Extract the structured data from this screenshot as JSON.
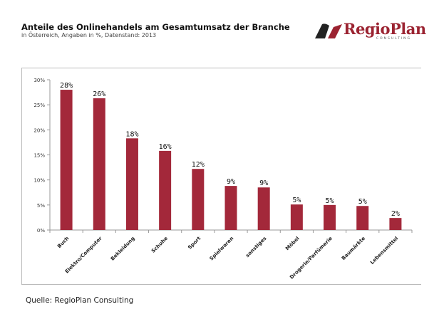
{
  "chart_data": {
    "type": "bar",
    "title": "Anteile des Onlinehandels am Gesamtumsatz der Branche",
    "subtitle": "in Österreich, Angaben in %, Datenstand: 2013",
    "categories": [
      "Buch",
      "Elektro/Computer",
      "Bekleidung",
      "Schuhe",
      "Sport",
      "Spielwaren",
      "sonstiges",
      "Möbel",
      "Drogerie/Parfümerie",
      "Baumärkte",
      "Lebensmittel"
    ],
    "values": [
      28,
      26.3,
      18.3,
      15.8,
      12.2,
      8.8,
      8.5,
      5.1,
      5.0,
      4.8,
      2.4
    ],
    "data_labels": [
      "28%",
      "26%",
      "18%",
      "16%",
      "12%",
      "9%",
      "9%",
      "5%",
      "5%",
      "5%",
      "2%"
    ],
    "ylim": [
      0,
      30
    ],
    "yticks": [
      "0%",
      "5%",
      "10%",
      "15%",
      "20%",
      "25%",
      "30%"
    ],
    "xlabel": "",
    "ylabel": "",
    "bar_color": "#a3283a",
    "grid": false,
    "legend": "none"
  },
  "logo": {
    "name": "RegioPlan",
    "sub": "CONSULTING"
  },
  "source": "Quelle: RegioPlan Consulting"
}
